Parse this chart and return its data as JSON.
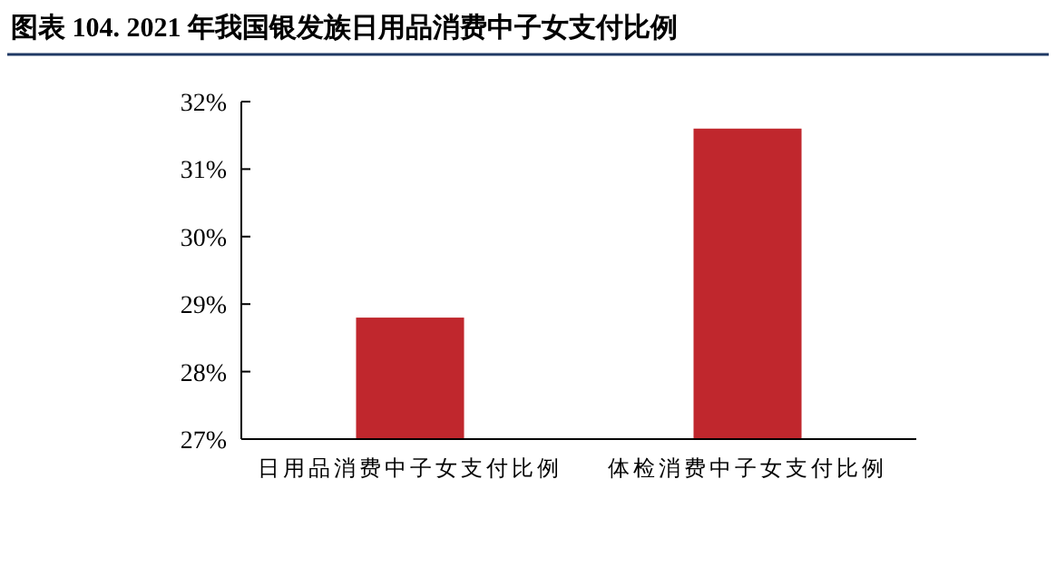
{
  "chart_data": {
    "type": "bar",
    "title": "图表 104.  2021 年我国银发族日用品消费中子女支付比例",
    "categories": [
      "日用品消费中子女支付比例",
      "体检消费中子女支付比例"
    ],
    "values": [
      28.8,
      31.6
    ],
    "color": "#c0272d",
    "ylim": [
      27,
      32
    ],
    "yticks": [
      {
        "value": 27,
        "label": "27%"
      },
      {
        "value": 28,
        "label": "28%"
      },
      {
        "value": 29,
        "label": "29%"
      },
      {
        "value": 30,
        "label": "30%"
      },
      {
        "value": 31,
        "label": "31%"
      },
      {
        "value": 32,
        "label": "32%"
      }
    ],
    "grid": false
  }
}
